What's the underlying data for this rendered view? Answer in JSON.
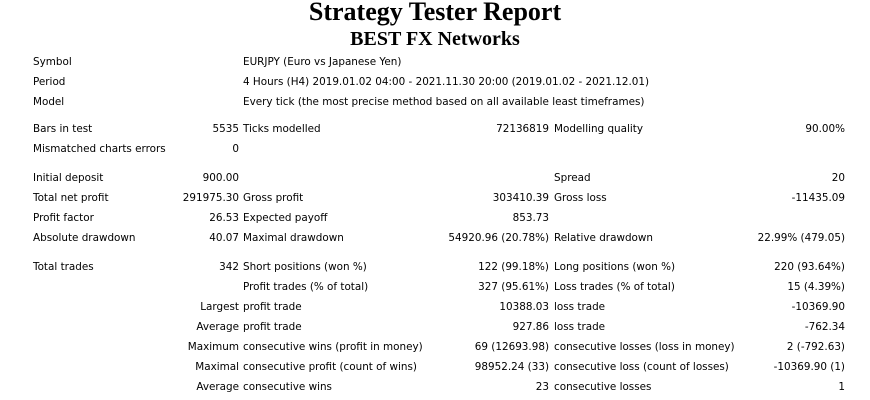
{
  "header": {
    "title": "Strategy Tester Report",
    "subtitle": "BEST FX Networks"
  },
  "info": {
    "symbol_label": "Symbol",
    "symbol_value": "EURJPY (Euro vs Japanese Yen)",
    "period_label": "Period",
    "period_value": "4 Hours (H4) 2019.01.02 04:00 - 2021.11.30 20:00 (2019.01.02 - 2021.12.01)",
    "model_label": "Model",
    "model_value": "Every tick (the most precise method based on all available least timeframes)"
  },
  "test": {
    "bars_label": "Bars in test",
    "bars_value": "5535",
    "ticks_label": "Ticks modelled",
    "ticks_value": "72136819",
    "quality_label": "Modelling quality",
    "quality_value": "90.00%",
    "mismatch_label": "Mismatched charts errors",
    "mismatch_value": "0"
  },
  "results": {
    "initial_deposit_label": "Initial deposit",
    "initial_deposit_value": "900.00",
    "spread_label": "Spread",
    "spread_value": "20",
    "net_profit_label": "Total net profit",
    "net_profit_value": "291975.30",
    "gross_profit_label": "Gross profit",
    "gross_profit_value": "303410.39",
    "gross_loss_label": "Gross loss",
    "gross_loss_value": "-11435.09",
    "profit_factor_label": "Profit factor",
    "profit_factor_value": "26.53",
    "expected_payoff_label": "Expected payoff",
    "expected_payoff_value": "853.73",
    "abs_drawdown_label": "Absolute drawdown",
    "abs_drawdown_value": "40.07",
    "max_drawdown_label": "Maximal drawdown",
    "max_drawdown_value": "54920.96 (20.78%)",
    "rel_drawdown_label": "Relative drawdown",
    "rel_drawdown_value": "22.99% (479.05)"
  },
  "trades": {
    "total_label": "Total trades",
    "total_value": "342",
    "short_label": "Short positions (won %)",
    "short_value": "122 (99.18%)",
    "long_label": "Long positions (won %)",
    "long_value": "220 (93.64%)",
    "profit_trades_label": "Profit trades (% of total)",
    "profit_trades_value": "327 (95.61%)",
    "loss_trades_label": "Loss trades (% of total)",
    "loss_trades_value": "15 (4.39%)",
    "largest_label": "Largest",
    "largest_profit_label": "profit trade",
    "largest_profit_value": "10388.03",
    "largest_loss_label": "loss trade",
    "largest_loss_value": "-10369.90",
    "average_label": "Average",
    "average_profit_label": "profit trade",
    "average_profit_value": "927.86",
    "average_loss_label": "loss trade",
    "average_loss_value": "-762.34",
    "maximum_label": "Maximum",
    "max_wins_label": "consecutive wins (profit in money)",
    "max_wins_value": "69 (12693.98)",
    "max_losses_label": "consecutive losses (loss in money)",
    "max_losses_value": "2 (-792.63)",
    "maximal_label": "Maximal",
    "maximal_profit_label": "consecutive profit (count of wins)",
    "maximal_profit_value": "98952.24 (33)",
    "maximal_loss_label": "consecutive loss (count of losses)",
    "maximal_loss_value": "-10369.90 (1)",
    "average2_label": "Average",
    "avg_wins_label": "consecutive wins",
    "avg_wins_value": "23",
    "avg_losses_label": "consecutive losses",
    "avg_losses_value": "1"
  }
}
